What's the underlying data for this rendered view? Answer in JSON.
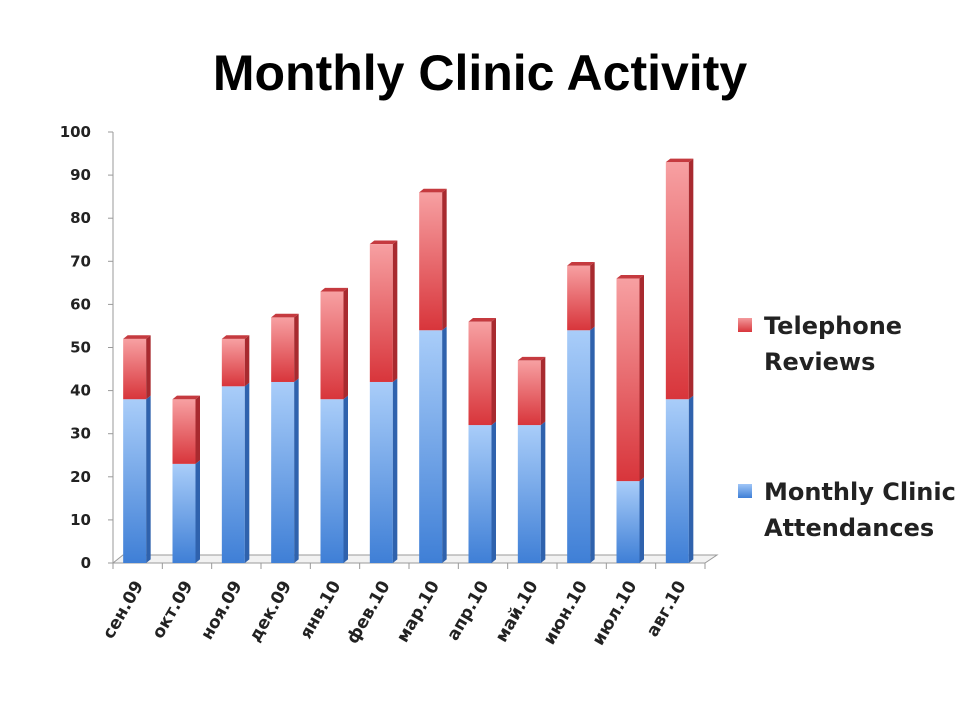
{
  "chart_data": {
    "type": "bar",
    "stacked": true,
    "title": "Monthly Clinic Activity",
    "categories": [
      "сен.09",
      "окт.09",
      "ноя.09",
      "дек.09",
      "янв.10",
      "фев.10",
      "мар.10",
      "апр.10",
      "май.10",
      "июн.10",
      "июл.10",
      "авг.10"
    ],
    "series": [
      {
        "name": "Monthly Clinic Attendances",
        "values": [
          38,
          23,
          41,
          42,
          38,
          42,
          54,
          32,
          32,
          54,
          19,
          38
        ],
        "color": "#4f8fe6"
      },
      {
        "name": "Telephone Reviews",
        "values": [
          14,
          15,
          11,
          15,
          25,
          32,
          32,
          24,
          15,
          15,
          47,
          55
        ],
        "color": "#e0474c"
      }
    ],
    "ylim": [
      0,
      100
    ],
    "yticks": [
      "0",
      "10",
      "20",
      "30",
      "40",
      "50",
      "60",
      "70",
      "80",
      "90",
      "100"
    ],
    "grid": false,
    "legend_position": "right"
  }
}
